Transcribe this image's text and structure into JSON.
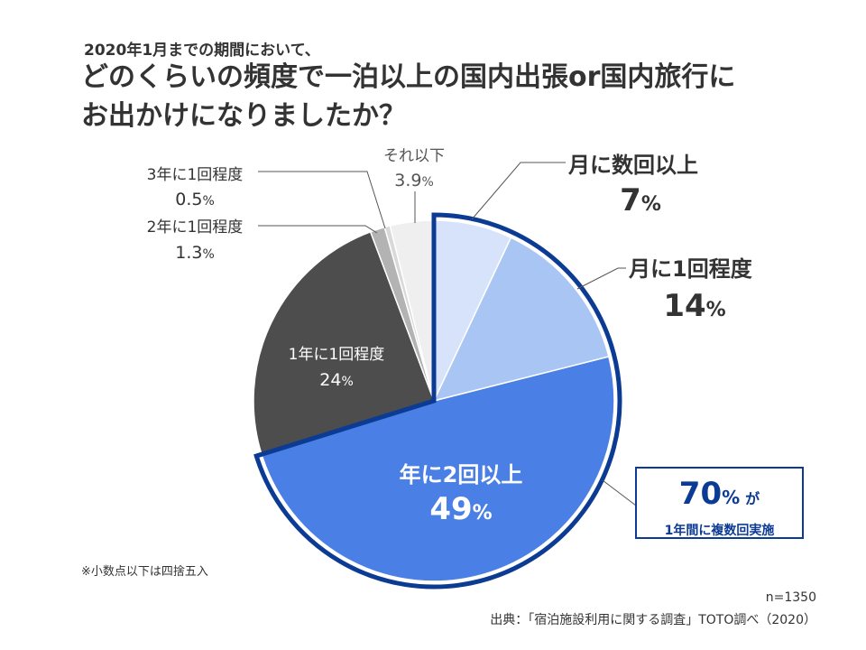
{
  "header": {
    "subtitle": "2020年1月までの期間において、",
    "title_line1": "どのくらいの頻度で一泊以上の国内出張or国内旅行に",
    "title_line2": "お出かけになりましたか？"
  },
  "chart_data": {
    "type": "pie",
    "title": "",
    "slices": [
      {
        "label": "月に数回以上",
        "value": 7,
        "value_text": "7",
        "unit": "%",
        "color": "#d6e3fa"
      },
      {
        "label": "月に1回程度",
        "value": 14,
        "value_text": "14",
        "unit": "%",
        "color": "#a9c5f4"
      },
      {
        "label": "年に2回以上",
        "value": 49,
        "value_text": "49",
        "unit": "%",
        "color": "#4a7fe6"
      },
      {
        "label": "1年に1回程度",
        "value": 24,
        "value_text": "24",
        "unit": "%",
        "color": "#4d4d4d"
      },
      {
        "label": "2年に1回程度",
        "value": 1.3,
        "value_text": "1.3",
        "unit": "%",
        "color": "#b3b3b3"
      },
      {
        "label": "3年に1回程度",
        "value": 0.5,
        "value_text": "0.5",
        "unit": "%",
        "color": "#d9d9d9"
      },
      {
        "label": "それ以下",
        "value": 3.9,
        "value_text": "3.9",
        "unit": "%",
        "color": "#efefef"
      }
    ],
    "highlight_group": [
      "月に数回以上",
      "月に1回程度",
      "年に2回以上"
    ],
    "highlight_color": "#0c3b94"
  },
  "callout": {
    "value": "70",
    "unit": "%",
    "suffix": "が",
    "text": "1年間に複数回実施"
  },
  "footer": {
    "note": "※小数点以下は四捨五入",
    "n": "n=1350",
    "source": "出典：「宿泊施設利用に関する調査」TOTO調べ（2020）"
  }
}
